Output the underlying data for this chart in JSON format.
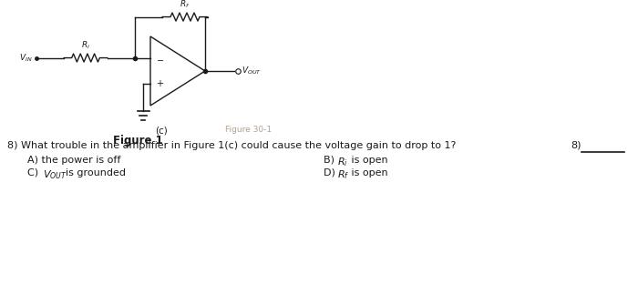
{
  "bg_color": "#ffffff",
  "fig_title": "Figure 1",
  "circuit_label": "(c)",
  "faded_label": "Figure 30-1",
  "line_color": "#1a1a1a",
  "text_color": "#1a1a1a",
  "faded_color": "#b0a090",
  "question_text": "8) What trouble in the amplifier in Figure 1(c) could cause the voltage gain to drop to 1?",
  "optA": "A) the power is off",
  "optB": "is open",
  "optC": "is grounded",
  "optD": "is open",
  "answer_label": "8)",
  "font_size_main": 8.0,
  "font_size_small": 7.0
}
